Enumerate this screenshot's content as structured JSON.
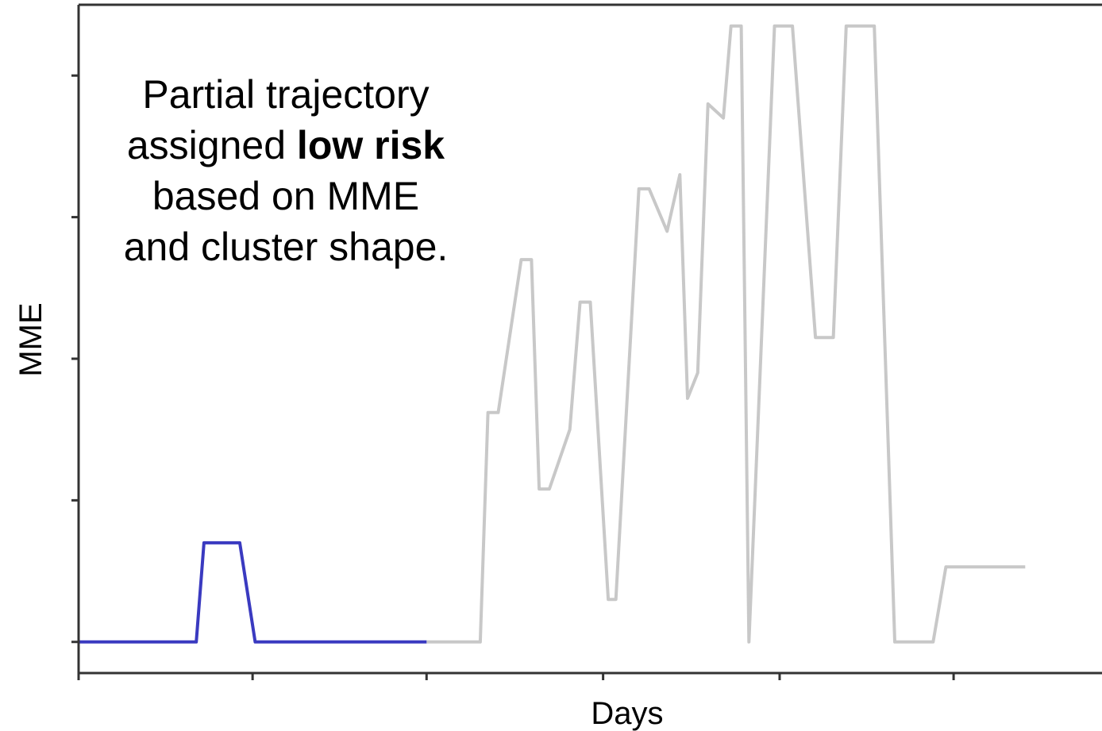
{
  "chart_data": {
    "type": "line",
    "xlabel": "Days",
    "ylabel": "MME",
    "xlim": [
      0,
      40
    ],
    "ylim": [
      -0.22,
      4.5
    ],
    "grid": false,
    "x_ticks": [
      0,
      6.8,
      13.6,
      20.5,
      27.4,
      34.2
    ],
    "y_ticks": [
      0,
      1,
      2,
      3,
      4
    ],
    "annotation": {
      "lines": [
        [
          {
            "text": "Partial trajectory",
            "bold": false
          }
        ],
        [
          {
            "text": "assigned ",
            "bold": false
          },
          {
            "text": "low risk",
            "bold": true
          }
        ],
        [
          {
            "text": "based on MME",
            "bold": false
          }
        ],
        [
          {
            "text": "and cluster shape.",
            "bold": false
          }
        ]
      ]
    },
    "series": [
      {
        "color": "#c8c8c8",
        "x": [
          13.6,
          15.7,
          16.0,
          16.4,
          17.3,
          17.7,
          18.0,
          18.4,
          19.2,
          19.6,
          20.0,
          20.7,
          21.0,
          21.9,
          22.3,
          23.0,
          23.5,
          23.8,
          24.2,
          24.6,
          25.2,
          25.5,
          25.7,
          25.9,
          26.2,
          27.2,
          27.9,
          28.8,
          29.5,
          30.0,
          31.1,
          31.9,
          32.4,
          33.1,
          33.4,
          33.9,
          34.3,
          36.0,
          36.3,
          37.0
        ],
        "y": [
          0,
          0,
          1.62,
          1.62,
          2.7,
          2.7,
          1.08,
          1.08,
          1.5,
          2.4,
          2.4,
          0.3,
          0.3,
          3.2,
          3.2,
          2.9,
          3.3,
          1.72,
          1.9,
          3.8,
          3.7,
          4.35,
          4.35,
          4.35,
          0,
          4.35,
          4.35,
          2.15,
          2.15,
          4.35,
          4.35,
          0,
          0,
          0,
          0,
          0.53,
          0.53,
          0.53,
          0.53,
          0.53
        ]
      },
      {
        "color": "#3a3ac0",
        "x": [
          0,
          4.6,
          4.9,
          6.3,
          6.9,
          13.6
        ],
        "y": [
          0,
          0,
          0.7,
          0.7,
          0,
          0
        ]
      }
    ]
  }
}
